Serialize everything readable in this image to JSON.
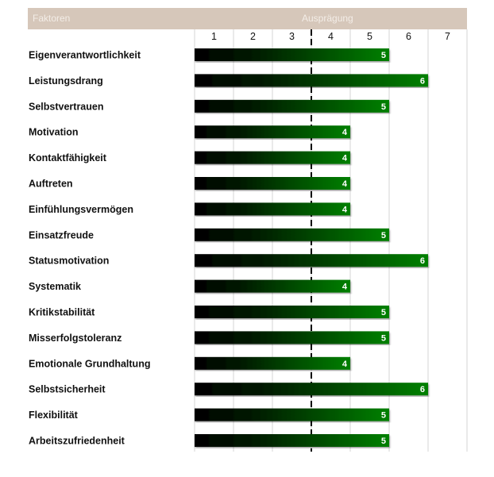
{
  "header": {
    "factors_label": "Faktoren",
    "scale_label": "Ausprägung"
  },
  "chart_data": {
    "type": "bar",
    "orientation": "horizontal",
    "xlim": [
      0,
      7
    ],
    "ticks": [
      "1",
      "2",
      "3",
      "4",
      "5",
      "6",
      "7"
    ],
    "reference_line": 3,
    "bar_color_start": "#000000",
    "bar_color_end": "#008000",
    "header_color": "#d6c7ba",
    "categories": [
      "Eigenverantwortlichkeit",
      "Leistungsdrang",
      "Selbstvertrauen",
      "Motivation",
      "Kontaktfähigkeit",
      "Auftreten",
      "Einfühlungsvermögen",
      "Einsatzfreude",
      "Statusmotivation",
      "Systematik",
      "Kritikstabilität",
      "Misserfolgstoleranz",
      "Emotionale Grundhaltung",
      "Selbstsicherheit",
      "Flexibilität",
      "Arbeitszufriedenheit"
    ],
    "values": [
      5,
      6,
      5,
      4,
      4,
      4,
      4,
      5,
      6,
      4,
      5,
      5,
      4,
      6,
      5,
      5
    ]
  }
}
